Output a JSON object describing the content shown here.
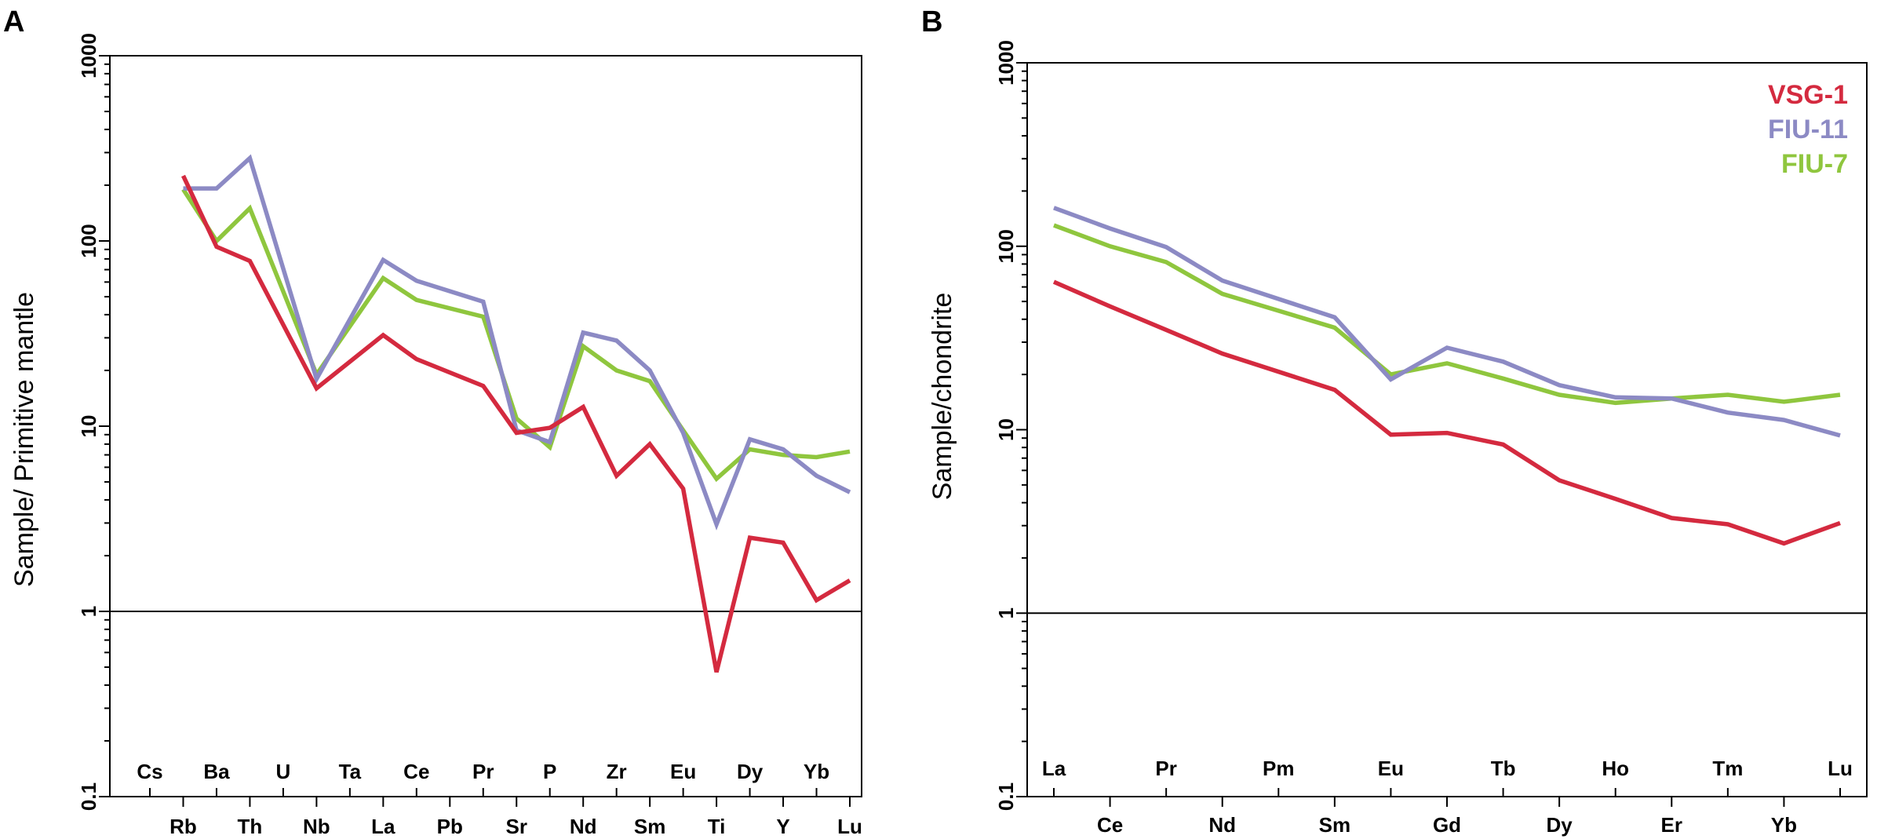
{
  "panels": [
    {
      "letter": "A",
      "ylabel": "Sample/ Primitive mantle",
      "y_ticks": [
        "1000",
        "100",
        "10",
        "1",
        "0.1"
      ],
      "ref_line_value": 1,
      "chart_data": {
        "type": "line",
        "title": "",
        "xlabel": "",
        "ylabel": "Sample/ Primitive mantle",
        "yscale": "log",
        "ylim": [
          0.1,
          1000
        ],
        "categories": [
          "Cs",
          "Rb",
          "Ba",
          "Th",
          "U",
          "Nb",
          "Ta",
          "La",
          "Ce",
          "Pb",
          "Pr",
          "Sr",
          "P",
          "Nd",
          "Zr",
          "Sm",
          "Eu",
          "Ti",
          "Dy",
          "Y",
          "Yb",
          "Lu"
        ],
        "series": [
          {
            "name": "VSG-1",
            "values": [
              null,
              225,
              93,
              78,
              null,
              16,
              null,
              31,
              23,
              null,
              16.5,
              9.2,
              9.8,
              12.7,
              5.4,
              8,
              4.6,
              0.47,
              2.5,
              2.35,
              1.15,
              1.47
            ]
          },
          {
            "name": "FIU-11",
            "values": [
              null,
              192,
              192,
              280,
              null,
              18,
              null,
              79,
              61,
              null,
              47,
              9.5,
              8.2,
              32,
              29,
              20,
              9.2,
              2.95,
              8.5,
              7.5,
              5.4,
              4.4
            ]
          },
          {
            "name": "FIU-7",
            "values": [
              null,
              190,
              100,
              150,
              null,
              19,
              null,
              63,
              48,
              null,
              39,
              11,
              7.7,
              27,
              20,
              17.5,
              9.5,
              5.2,
              7.5,
              7,
              6.8,
              7.3
            ]
          }
        ]
      }
    },
    {
      "letter": "B",
      "ylabel": "Sample/chondrite",
      "y_ticks": [
        "1000",
        "100",
        "10",
        "1",
        "0.1"
      ],
      "ref_line_value": 1,
      "chart_data": {
        "type": "line",
        "title": "",
        "xlabel": "",
        "ylabel": "Sample/chondrite",
        "yscale": "log",
        "ylim": [
          0.1,
          1000
        ],
        "categories": [
          "La",
          "Ce",
          "Pr",
          "Nd",
          "Pm",
          "Sm",
          "Eu",
          "Gd",
          "Tb",
          "Dy",
          "Ho",
          "Er",
          "Tm",
          "Yb",
          "Lu"
        ],
        "series": [
          {
            "name": "VSG-1",
            "values": [
              64,
              47,
              35,
              26,
              null,
              16.5,
              9.4,
              9.6,
              8.3,
              5.3,
              4.2,
              3.3,
              3.05,
              2.4,
              3.1
            ]
          },
          {
            "name": "FIU-11",
            "values": [
              162,
              125,
              99,
              65,
              null,
              41,
              18.8,
              28,
              23.5,
              17.5,
              15,
              14.8,
              12.4,
              11.3,
              9.3
            ]
          },
          {
            "name": "FIU-7",
            "values": [
              130,
              100,
              82,
              55,
              null,
              36,
              20,
              23,
              19,
              15.5,
              14,
              14.8,
              15.5,
              14.2,
              15.5
            ]
          }
        ]
      }
    }
  ],
  "legend": [
    {
      "name": "VSG-1",
      "color": "#d42a3f"
    },
    {
      "name": "FIU-11",
      "color": "#8c8ac4"
    },
    {
      "name": "FIU-7",
      "color": "#8fc63e"
    }
  ]
}
